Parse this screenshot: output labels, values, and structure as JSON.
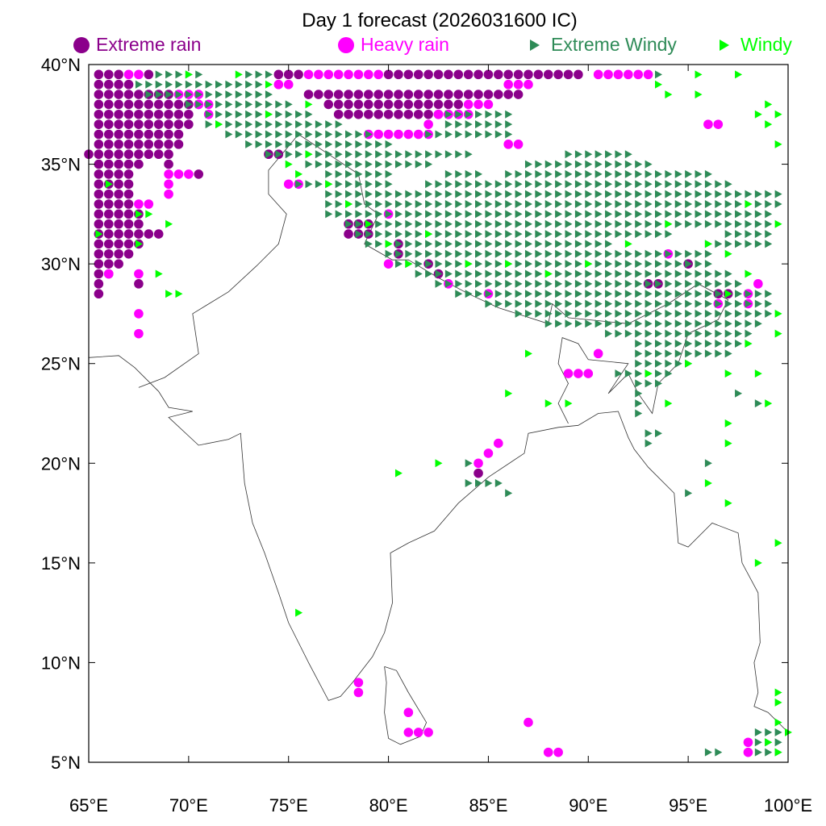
{
  "title": "Day 1 forecast (2026031600 IC)",
  "legend": [
    {
      "label": "Extreme rain",
      "color": "#8B008B",
      "marker": "circle"
    },
    {
      "label": "Heavy rain",
      "color": "#FF00FF",
      "marker": "circle"
    },
    {
      "label": "Extreme Windy",
      "color": "#2E8B57",
      "marker": "triangle"
    },
    {
      "label": "Windy",
      "color": "#00FF00",
      "marker": "triangle"
    }
  ],
  "chart_data": {
    "type": "scatter",
    "title": "Day 1 forecast (2026031600 IC)",
    "xlim": [
      65,
      100
    ],
    "ylim": [
      5,
      40
    ],
    "xticks": [
      "65°E",
      "70°E",
      "75°E",
      "80°E",
      "85°E",
      "90°E",
      "95°E",
      "100°E"
    ],
    "yticks": [
      "5°N",
      "10°N",
      "15°N",
      "20°N",
      "25°N",
      "30°N",
      "35°N",
      "40°N"
    ],
    "grid": false,
    "legend_position": "top",
    "series": [
      {
        "name": "Extreme rain",
        "rows": [
          [
            39.5,
            [
              65.5,
              66.5
            ],
            [
              68,
              68
            ],
            [
              74.5,
              75.5
            ],
            [
              80,
              89.5
            ]
          ],
          [
            39,
            [
              65.5,
              67
            ]
          ],
          [
            38.5,
            [
              65.5,
              69
            ],
            [
              76,
              86.5
            ]
          ],
          [
            38,
            [
              65.5,
              70.5
            ],
            [
              77,
              83.5
            ]
          ],
          [
            37.5,
            [
              65.5,
              70
            ],
            [
              77.5,
              83.5
            ]
          ],
          [
            37,
            [
              65.5,
              70
            ]
          ],
          [
            36.5,
            [
              65.5,
              69.5
            ]
          ],
          [
            36,
            [
              65.5,
              69.5
            ]
          ],
          [
            35.5,
            [
              65,
              69
            ],
            [
              74,
              74.5
            ]
          ],
          [
            35,
            [
              65.5,
              67.5
            ],
            [
              69,
              69
            ]
          ],
          [
            34.5,
            [
              65.5,
              67
            ],
            [
              70.5,
              70.5
            ]
          ],
          [
            34,
            [
              65.5,
              67
            ]
          ],
          [
            33.5,
            [
              65.5,
              67
            ]
          ],
          [
            33,
            [
              65.5,
              67
            ]
          ],
          [
            32.5,
            [
              65.5,
              67.5
            ]
          ],
          [
            32,
            [
              65.5,
              67.5
            ],
            [
              78,
              79
            ]
          ],
          [
            31.5,
            [
              65.5,
              68.5
            ],
            [
              78,
              79
            ]
          ],
          [
            31,
            [
              65.5,
              67.5
            ],
            [
              80.5,
              80.5
            ]
          ],
          [
            30.5,
            [
              65.5,
              67
            ],
            [
              80.5,
              80.5
            ]
          ],
          [
            30,
            [
              65.5,
              66.5
            ],
            [
              82,
              82
            ],
            [
              95,
              95
            ]
          ],
          [
            29.5,
            [
              65.5,
              66
            ],
            [
              82.5,
              82.5
            ]
          ],
          [
            29,
            [
              65.5,
              65.5
            ],
            [
              67.5,
              67.5
            ],
            [
              93,
              93.5
            ]
          ],
          [
            28.5,
            [
              65.5,
              65.5
            ],
            [
              96.5,
              97
            ]
          ],
          [
            19.5,
            [
              84.5,
              84.5
            ]
          ]
        ]
      },
      {
        "name": "Heavy rain",
        "rows": [
          [
            39.5,
            [
              67,
              67.5
            ],
            [
              76,
              79.5
            ],
            [
              90.5,
              93
            ]
          ],
          [
            39,
            [
              74.5,
              75
            ],
            [
              86,
              87
            ]
          ],
          [
            38.5,
            [
              69.5,
              70.5
            ]
          ],
          [
            38,
            [
              70.5,
              71
            ],
            [
              84,
              85
            ]
          ],
          [
            37.5,
            [
              71,
              71
            ],
            [
              82.5,
              84
            ]
          ],
          [
            37,
            [
              82,
              82
            ],
            [
              96,
              96.5
            ]
          ],
          [
            36.5,
            [
              79,
              82
            ]
          ],
          [
            36,
            [
              86,
              86.5
            ]
          ],
          [
            34.5,
            [
              69,
              70
            ]
          ],
          [
            34,
            [
              69,
              69
            ],
            [
              75,
              75.5
            ]
          ],
          [
            33.5,
            [
              69,
              69
            ]
          ],
          [
            33,
            [
              67.5,
              68
            ]
          ],
          [
            32.5,
            [
              80,
              80
            ]
          ],
          [
            30.5,
            [
              94,
              94
            ]
          ],
          [
            30,
            [
              80,
              80
            ]
          ],
          [
            29.5,
            [
              66,
              66
            ],
            [
              67.5,
              67.5
            ]
          ],
          [
            29,
            [
              83,
              83
            ],
            [
              98.5,
              98.5
            ]
          ],
          [
            28.5,
            [
              85,
              85
            ],
            [
              98,
              98
            ]
          ],
          [
            28,
            [
              96.5,
              96.5
            ],
            [
              98,
              98
            ]
          ],
          [
            27.5,
            [
              67.5,
              67.5
            ]
          ],
          [
            26.5,
            [
              67.5,
              67.5
            ]
          ],
          [
            25.5,
            [
              90.5,
              90.5
            ]
          ],
          [
            24.5,
            [
              89,
              90
            ]
          ],
          [
            21,
            [
              85.5,
              85.5
            ]
          ],
          [
            20.5,
            [
              85,
              85
            ]
          ],
          [
            20,
            [
              84.5,
              84.5
            ]
          ],
          [
            9,
            [
              78.5,
              78.5
            ]
          ],
          [
            8.5,
            [
              78.5,
              78.5
            ]
          ],
          [
            7.5,
            [
              81,
              81
            ]
          ],
          [
            7,
            [
              87,
              87
            ]
          ],
          [
            6.5,
            [
              81,
              82
            ]
          ],
          [
            6,
            [
              98,
              98
            ]
          ],
          [
            5.5,
            [
              88,
              88.5
            ],
            [
              98,
              98
            ]
          ]
        ]
      },
      {
        "name": "Extreme Windy",
        "rows": [
          [
            39.5,
            [
              68.5,
              70.5
            ],
            [
              73,
              74
            ],
            [
              93.5,
              93.5
            ]
          ],
          [
            39,
            [
              67.5,
              73.5
            ]
          ],
          [
            38.5,
            [
              68,
              74
            ]
          ],
          [
            38,
            [
              70,
              75
            ]
          ],
          [
            37.5,
            [
              71,
              76
            ],
            [
              83,
              86
            ]
          ],
          [
            37,
            [
              71,
              77.5
            ],
            [
              83,
              86
            ]
          ],
          [
            36.5,
            [
              72,
              79
            ],
            [
              82,
              86
            ]
          ],
          [
            36,
            [
              73,
              80
            ]
          ],
          [
            35.5,
            [
              74,
              84
            ],
            [
              89,
              92
            ]
          ],
          [
            35,
            [
              76,
              82
            ],
            [
              87,
              93
            ]
          ],
          [
            34.5,
            [
              77,
              80
            ],
            [
              83,
              84.5
            ],
            [
              86,
              96
            ]
          ],
          [
            34,
            [
              75.5,
              80
            ],
            [
              82,
              97
            ]
          ],
          [
            33.5,
            [
              77,
              99.5
            ]
          ],
          [
            33,
            [
              77,
              99.5
            ]
          ],
          [
            32.5,
            [
              77,
              99
            ]
          ],
          [
            32,
            [
              78,
              99
            ]
          ],
          [
            31.5,
            [
              78.5,
              94
            ],
            [
              97,
              99
            ]
          ],
          [
            31,
            [
              79,
              91
            ],
            [
              96,
              99
            ]
          ],
          [
            30.5,
            [
              80,
              96
            ]
          ],
          [
            30,
            [
              80.5,
              96
            ]
          ],
          [
            29.5,
            [
              81.5,
              97
            ]
          ],
          [
            29,
            [
              82.5,
              97.5
            ]
          ],
          [
            28.5,
            [
              83.5,
              99
            ]
          ],
          [
            28,
            [
              85,
              99
            ]
          ],
          [
            27.5,
            [
              86.5,
              99
            ]
          ],
          [
            27,
            [
              88,
              98.5
            ]
          ],
          [
            26.5,
            [
              91,
              98
            ]
          ],
          [
            26,
            [
              92.5,
              98
            ]
          ],
          [
            25.5,
            [
              92.5,
              97
            ]
          ],
          [
            25,
            [
              92.5,
              95
            ]
          ],
          [
            24.5,
            [
              91.5,
              94
            ]
          ],
          [
            24,
            [
              92.5,
              93.5
            ]
          ],
          [
            23.5,
            [
              92.5,
              92.5
            ],
            [
              97.5,
              97.5
            ]
          ],
          [
            23,
            [
              92.5,
              92.5
            ],
            [
              98.5,
              98.5
            ]
          ],
          [
            22.5,
            [
              92.5,
              92.5
            ]
          ],
          [
            21.5,
            [
              93,
              93.5
            ]
          ],
          [
            21,
            [
              93,
              93
            ]
          ],
          [
            20,
            [
              84,
              84
            ],
            [
              96,
              96
            ]
          ],
          [
            19,
            [
              84,
              85.5
            ]
          ],
          [
            18.5,
            [
              86,
              86
            ],
            [
              95,
              95
            ]
          ],
          [
            6.5,
            [
              98.5,
              99.5
            ]
          ],
          [
            6,
            [
              98.5,
              99.5
            ]
          ],
          [
            5.5,
            [
              96,
              96.5
            ],
            [
              98.5,
              99.5
            ]
          ]
        ]
      },
      {
        "name": "Windy",
        "points": [
          [
            70,
            39.5
          ],
          [
            72.5,
            39.5
          ],
          [
            74,
            39
          ],
          [
            93.5,
            39
          ],
          [
            95.5,
            39.5
          ],
          [
            97.5,
            39.5
          ],
          [
            94,
            38.5
          ],
          [
            95.5,
            38.5
          ],
          [
            99,
            38
          ],
          [
            98.5,
            37.5
          ],
          [
            99.5,
            37.5
          ],
          [
            99,
            37
          ],
          [
            99.5,
            36
          ],
          [
            71.5,
            37
          ],
          [
            74,
            37.5
          ],
          [
            76,
            38
          ],
          [
            75,
            35
          ],
          [
            75.5,
            34.5
          ],
          [
            76,
            35.5
          ],
          [
            77,
            34
          ],
          [
            78,
            33
          ],
          [
            79,
            32
          ],
          [
            80,
            31
          ],
          [
            81,
            30
          ],
          [
            82,
            31.5
          ],
          [
            84,
            30
          ],
          [
            86,
            30
          ],
          [
            88,
            29.5
          ],
          [
            90,
            30
          ],
          [
            92,
            31
          ],
          [
            94,
            32
          ],
          [
            96,
            31
          ],
          [
            98,
            33
          ],
          [
            99.5,
            32
          ],
          [
            97,
            30.5
          ],
          [
            98,
            29.5
          ],
          [
            99.5,
            27.5
          ],
          [
            99.5,
            26.5
          ],
          [
            98,
            26
          ],
          [
            95,
            25
          ],
          [
            93,
            24.5
          ],
          [
            94,
            23
          ],
          [
            97,
            24.5
          ],
          [
            98.5,
            24.5
          ],
          [
            99,
            23
          ],
          [
            97,
            22
          ],
          [
            97,
            21
          ],
          [
            96,
            19
          ],
          [
            97,
            18
          ],
          [
            99.5,
            16
          ],
          [
            98.5,
            15
          ],
          [
            99.5,
            8.5
          ],
          [
            99.5,
            8
          ],
          [
            99.5,
            7
          ],
          [
            100,
            6.5
          ],
          [
            99,
            6
          ],
          [
            99.5,
            5.5
          ],
          [
            87,
            25.5
          ],
          [
            86,
            23.5
          ],
          [
            88,
            23
          ],
          [
            89,
            23
          ],
          [
            82.5,
            20
          ],
          [
            80.5,
            19.5
          ],
          [
            75.5,
            12.5
          ],
          [
            67.5,
            32.5
          ],
          [
            68,
            32.5
          ],
          [
            67.5,
            31
          ],
          [
            69,
            32
          ],
          [
            66,
            34
          ],
          [
            69,
            28.5
          ],
          [
            69.5,
            28.5
          ],
          [
            68.5,
            29.5
          ],
          [
            65.5,
            31.5
          ],
          [
            97,
            28.5
          ]
        ]
      }
    ]
  }
}
